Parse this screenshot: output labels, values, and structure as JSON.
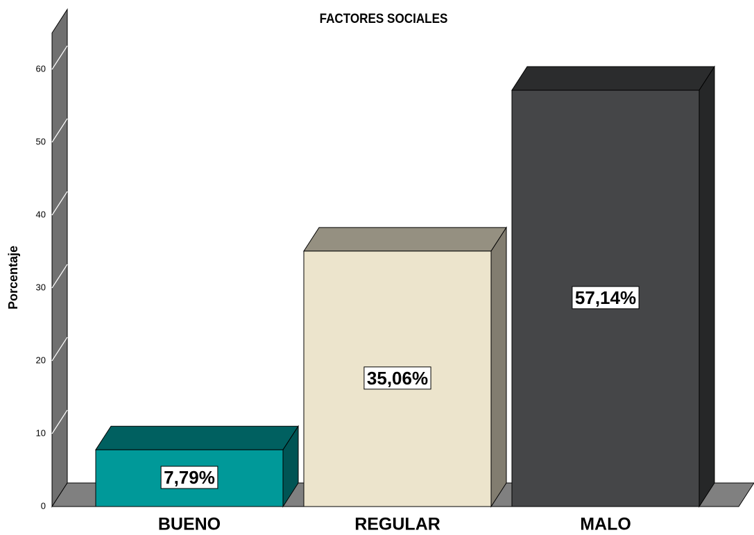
{
  "chart_data": {
    "type": "bar3d",
    "title": "FACTORES SOCIALES",
    "y_label": "Porcentaje",
    "categories": [
      "BUENO",
      "REGULAR",
      "MALO"
    ],
    "values": [
      7.79,
      35.06,
      57.14
    ],
    "value_labels": [
      "7,79%",
      "35,06%",
      "57,14%"
    ],
    "colors": [
      "#009999",
      "#ece4cc",
      "#454648"
    ],
    "ylim": [
      0,
      65
    ],
    "yticks": [
      0,
      10,
      20,
      30,
      40,
      50,
      60
    ]
  }
}
